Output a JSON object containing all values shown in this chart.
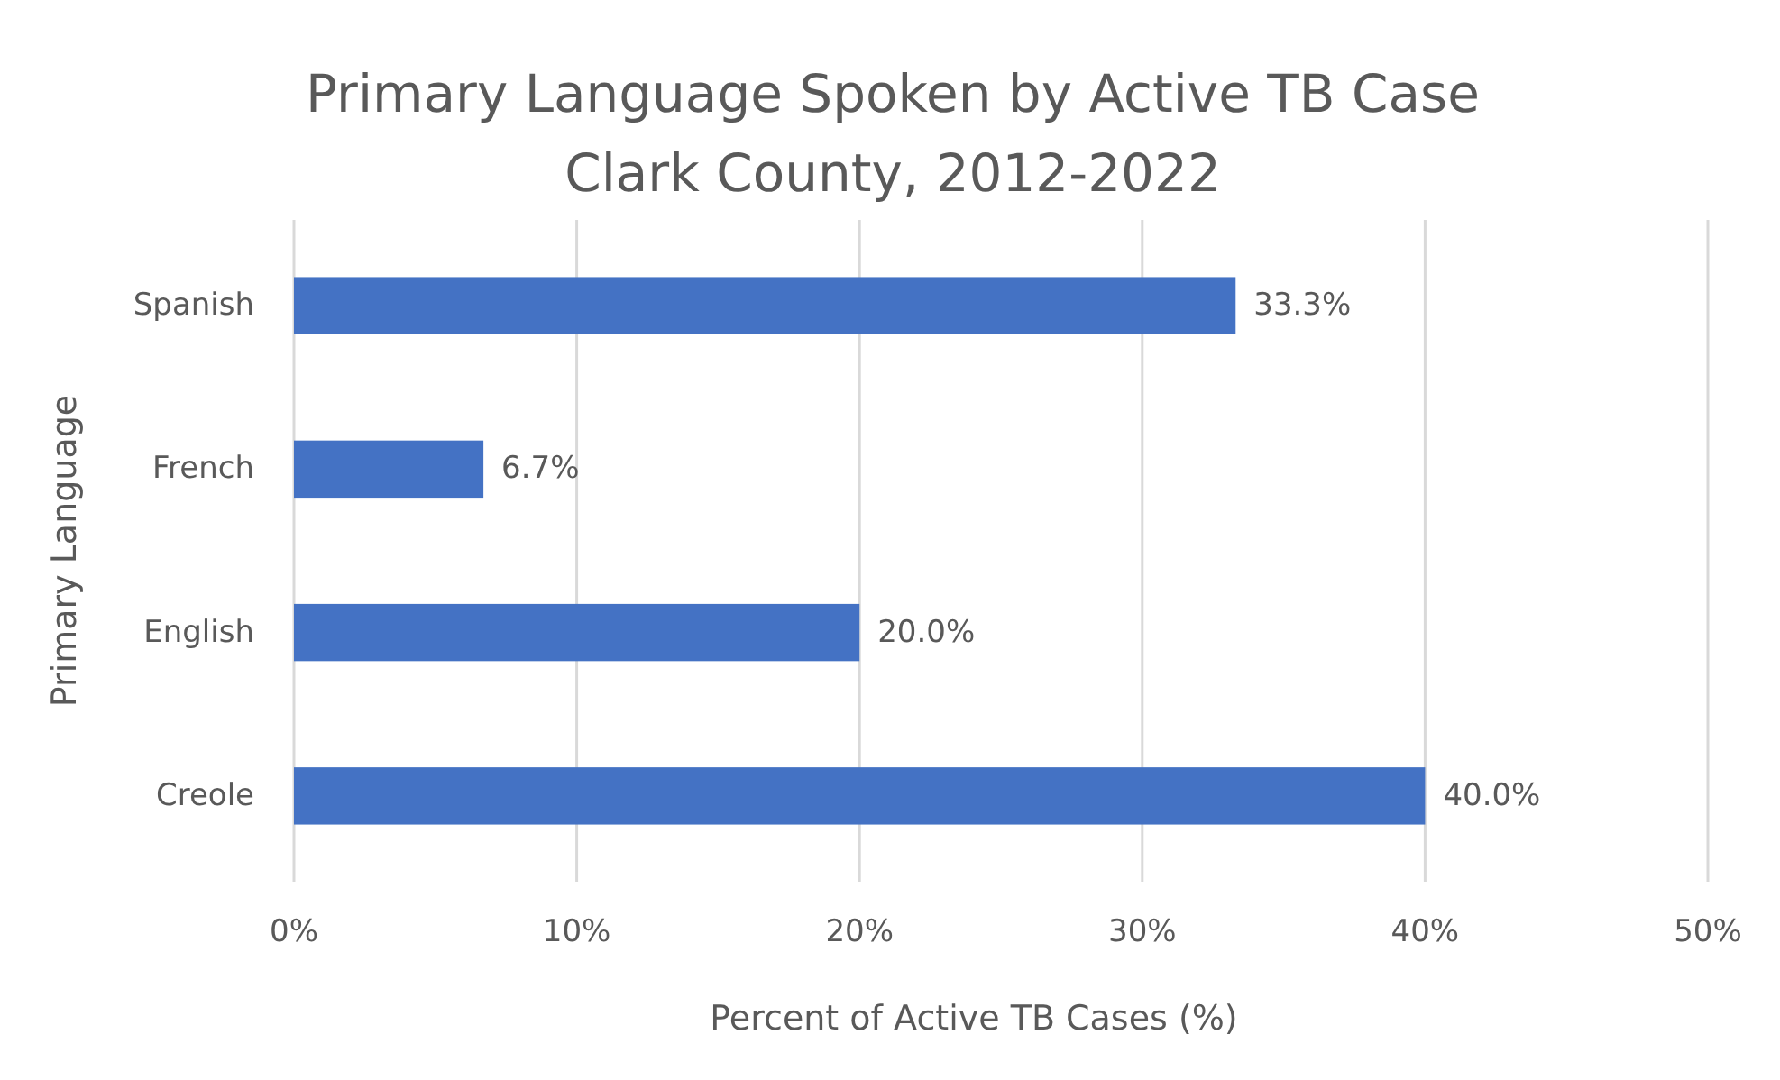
{
  "chart_data": {
    "type": "bar",
    "orientation": "horizontal",
    "title": "Primary Language Spoken by Active TB Case",
    "subtitle": "Clark County, 2012-2022",
    "xlabel": "Percent of Active TB Cases (%)",
    "ylabel": "Primary Language",
    "categories": [
      "Spanish",
      "French",
      "English",
      "Creole"
    ],
    "values": [
      33.3,
      6.7,
      20.0,
      40.0
    ],
    "value_labels": [
      "33.3%",
      "6.7%",
      "20.0%",
      "40.0%"
    ],
    "color": "#4472c4",
    "xlim": [
      0,
      50
    ],
    "xticks": [
      {
        "value": 0,
        "label": "0%"
      },
      {
        "value": 10,
        "label": "10%"
      },
      {
        "value": 20,
        "label": "20%"
      },
      {
        "value": 30,
        "label": "30%"
      },
      {
        "value": 40,
        "label": "40%"
      },
      {
        "value": 50,
        "label": "50%"
      }
    ],
    "grid": "x"
  }
}
